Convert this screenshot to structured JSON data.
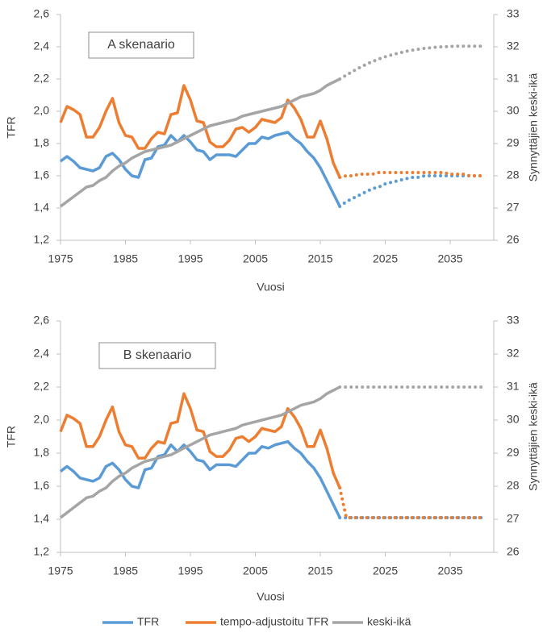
{
  "chart_data": [
    {
      "type": "line",
      "annotation": "A skenaario",
      "xlabel": "Vuosi",
      "ylabel": "TFR",
      "y2label": "Synnyttäjien keski-ikä",
      "x": [
        1975,
        1976,
        1977,
        1978,
        1979,
        1980,
        1981,
        1982,
        1983,
        1984,
        1985,
        1986,
        1987,
        1988,
        1989,
        1990,
        1991,
        1992,
        1993,
        1994,
        1995,
        1996,
        1997,
        1998,
        1999,
        2000,
        2001,
        2002,
        2003,
        2004,
        2005,
        2006,
        2007,
        2008,
        2009,
        2010,
        2011,
        2012,
        2013,
        2014,
        2015,
        2016,
        2017,
        2018,
        2019,
        2020,
        2021,
        2022,
        2023,
        2024,
        2025,
        2026,
        2027,
        2028,
        2029,
        2030,
        2031,
        2032,
        2033,
        2034,
        2035,
        2036,
        2037,
        2038,
        2039,
        2040
      ],
      "xlim": [
        1975,
        2041.7
      ],
      "xticks": [
        1975,
        1985,
        1995,
        2005,
        2015,
        2025,
        2035
      ],
      "ylim": [
        1.2,
        2.6
      ],
      "yticks": [
        {
          "value": 1.2,
          "label": "1,2"
        },
        {
          "value": 1.4,
          "label": "1,4"
        },
        {
          "value": 1.6,
          "label": "1,6"
        },
        {
          "value": 1.8,
          "label": "1,8"
        },
        {
          "value": 2.0,
          "label": "2,0"
        },
        {
          "value": 2.2,
          "label": "2,2"
        },
        {
          "value": 2.4,
          "label": "2,4"
        },
        {
          "value": 2.6,
          "label": "2,6"
        }
      ],
      "y2lim": [
        26,
        33
      ],
      "y2ticks": [
        26,
        27,
        28,
        29,
        30,
        31,
        32,
        33
      ],
      "series": [
        {
          "color": "#5b9bd5",
          "values": [
            1.69,
            1.72,
            1.69,
            1.65,
            1.64,
            1.63,
            1.65,
            1.72,
            1.74,
            1.7,
            1.64,
            1.6,
            1.59,
            1.7,
            1.71,
            1.78,
            1.79,
            1.85,
            1.81,
            1.85,
            1.81,
            1.76,
            1.75,
            1.7,
            1.73,
            1.73,
            1.73,
            1.72,
            1.76,
            1.8,
            1.8,
            1.84,
            1.83,
            1.85,
            1.86,
            1.87,
            1.83,
            1.8,
            1.75,
            1.71,
            1.65,
            1.57,
            1.49,
            1.41,
            null,
            null,
            null,
            null,
            null,
            null,
            null,
            null,
            null,
            null,
            null,
            null,
            null,
            null,
            null,
            null,
            null,
            null,
            null,
            null,
            null,
            null
          ],
          "projection": [
            null,
            null,
            null,
            null,
            null,
            null,
            null,
            null,
            null,
            null,
            null,
            null,
            null,
            null,
            null,
            null,
            null,
            null,
            null,
            null,
            null,
            null,
            null,
            null,
            null,
            null,
            null,
            null,
            null,
            null,
            null,
            null,
            null,
            null,
            null,
            null,
            null,
            null,
            null,
            null,
            null,
            null,
            null,
            1.41,
            1.44,
            1.46,
            1.48,
            1.5,
            1.52,
            1.53,
            1.55,
            1.56,
            1.57,
            1.58,
            1.59,
            1.59,
            1.6,
            1.6,
            1.6,
            1.6,
            1.6,
            1.6,
            1.6,
            1.6,
            1.6,
            1.6
          ]
        },
        {
          "color": "#ed7d31",
          "values": [
            1.93,
            2.03,
            2.01,
            1.98,
            1.84,
            1.84,
            1.9,
            2.0,
            2.08,
            1.93,
            1.85,
            1.84,
            1.77,
            1.77,
            1.83,
            1.87,
            1.86,
            1.98,
            1.99,
            2.16,
            2.07,
            1.94,
            1.93,
            1.81,
            1.78,
            1.78,
            1.82,
            1.89,
            1.9,
            1.87,
            1.9,
            1.95,
            1.94,
            1.93,
            1.96,
            2.07,
            2.02,
            1.95,
            1.84,
            1.84,
            1.94,
            1.83,
            1.68,
            1.59,
            null,
            null,
            null,
            null,
            null,
            null,
            null,
            null,
            null,
            null,
            null,
            null,
            null,
            null,
            null,
            null,
            null,
            null,
            null,
            null,
            null,
            null
          ],
          "projection": [
            null,
            null,
            null,
            null,
            null,
            null,
            null,
            null,
            null,
            null,
            null,
            null,
            null,
            null,
            null,
            null,
            null,
            null,
            null,
            null,
            null,
            null,
            null,
            null,
            null,
            null,
            null,
            null,
            null,
            null,
            null,
            null,
            null,
            null,
            null,
            null,
            null,
            null,
            null,
            null,
            null,
            null,
            null,
            1.59,
            1.6,
            1.6,
            1.61,
            1.61,
            1.61,
            1.62,
            1.62,
            1.62,
            1.62,
            1.62,
            1.62,
            1.62,
            1.62,
            1.62,
            1.62,
            1.62,
            1.61,
            1.61,
            1.61,
            1.6,
            1.6,
            1.6
          ]
        },
        {
          "color": "#a5a5a5",
          "axis": "y2",
          "values": [
            27.05,
            27.2,
            27.35,
            27.5,
            27.65,
            27.7,
            27.85,
            27.95,
            28.15,
            28.3,
            28.4,
            28.55,
            28.65,
            28.75,
            28.8,
            28.85,
            28.9,
            28.95,
            29.05,
            29.15,
            29.25,
            29.35,
            29.45,
            29.55,
            29.6,
            29.65,
            29.7,
            29.75,
            29.85,
            29.9,
            29.95,
            30.0,
            30.05,
            30.1,
            30.15,
            30.25,
            30.35,
            30.45,
            30.5,
            30.55,
            30.65,
            30.8,
            30.9,
            31.0,
            null,
            null,
            null,
            null,
            null,
            null,
            null,
            null,
            null,
            null,
            null,
            null,
            null,
            null,
            null,
            null,
            null,
            null,
            null,
            null,
            null,
            null
          ],
          "projection": [
            null,
            null,
            null,
            null,
            null,
            null,
            null,
            null,
            null,
            null,
            null,
            null,
            null,
            null,
            null,
            null,
            null,
            null,
            null,
            null,
            null,
            null,
            null,
            null,
            null,
            null,
            null,
            null,
            null,
            null,
            null,
            null,
            null,
            null,
            null,
            null,
            null,
            null,
            null,
            null,
            null,
            null,
            null,
            31.0,
            31.12,
            31.24,
            31.35,
            31.45,
            31.54,
            31.62,
            31.69,
            31.75,
            31.8,
            31.85,
            31.89,
            31.92,
            31.95,
            31.97,
            31.99,
            32.0,
            32.01,
            32.02,
            32.02,
            32.02,
            32.02,
            32.02
          ]
        }
      ]
    },
    {
      "type": "line",
      "annotation": "B skenaario",
      "xlabel": "Vuosi",
      "ylabel": "TFR",
      "y2label": "Synnyttäjien keski-ikä",
      "x": [
        1975,
        1976,
        1977,
        1978,
        1979,
        1980,
        1981,
        1982,
        1983,
        1984,
        1985,
        1986,
        1987,
        1988,
        1989,
        1990,
        1991,
        1992,
        1993,
        1994,
        1995,
        1996,
        1997,
        1998,
        1999,
        2000,
        2001,
        2002,
        2003,
        2004,
        2005,
        2006,
        2007,
        2008,
        2009,
        2010,
        2011,
        2012,
        2013,
        2014,
        2015,
        2016,
        2017,
        2018,
        2019,
        2020,
        2021,
        2022,
        2023,
        2024,
        2025,
        2026,
        2027,
        2028,
        2029,
        2030,
        2031,
        2032,
        2033,
        2034,
        2035,
        2036,
        2037,
        2038,
        2039,
        2040
      ],
      "xlim": [
        1975,
        2041.7
      ],
      "xticks": [
        1975,
        1985,
        1995,
        2005,
        2015,
        2025,
        2035
      ],
      "ylim": [
        1.2,
        2.6
      ],
      "yticks": [
        {
          "value": 1.2,
          "label": "1,2"
        },
        {
          "value": 1.4,
          "label": "1,4"
        },
        {
          "value": 1.6,
          "label": "1,6"
        },
        {
          "value": 1.8,
          "label": "1,8"
        },
        {
          "value": 2.0,
          "label": "2,0"
        },
        {
          "value": 2.2,
          "label": "2,2"
        },
        {
          "value": 2.4,
          "label": "2,4"
        },
        {
          "value": 2.6,
          "label": "2,6"
        }
      ],
      "y2lim": [
        26,
        33
      ],
      "y2ticks": [
        26,
        27,
        28,
        29,
        30,
        31,
        32,
        33
      ],
      "series": [
        {
          "name": "TFR",
          "color": "#5b9bd5",
          "values": [
            1.69,
            1.72,
            1.69,
            1.65,
            1.64,
            1.63,
            1.65,
            1.72,
            1.74,
            1.7,
            1.64,
            1.6,
            1.59,
            1.7,
            1.71,
            1.78,
            1.79,
            1.85,
            1.81,
            1.85,
            1.81,
            1.76,
            1.75,
            1.7,
            1.73,
            1.73,
            1.73,
            1.72,
            1.76,
            1.8,
            1.8,
            1.84,
            1.83,
            1.85,
            1.86,
            1.87,
            1.83,
            1.8,
            1.75,
            1.71,
            1.65,
            1.57,
            1.49,
            1.41,
            null,
            null,
            null,
            null,
            null,
            null,
            null,
            null,
            null,
            null,
            null,
            null,
            null,
            null,
            null,
            null,
            null,
            null,
            null,
            null,
            null,
            null
          ],
          "projection": [
            null,
            null,
            null,
            null,
            null,
            null,
            null,
            null,
            null,
            null,
            null,
            null,
            null,
            null,
            null,
            null,
            null,
            null,
            null,
            null,
            null,
            null,
            null,
            null,
            null,
            null,
            null,
            null,
            null,
            null,
            null,
            null,
            null,
            null,
            null,
            null,
            null,
            null,
            null,
            null,
            null,
            null,
            null,
            1.41,
            1.41,
            1.41,
            1.41,
            1.41,
            1.41,
            1.41,
            1.41,
            1.41,
            1.41,
            1.41,
            1.41,
            1.41,
            1.41,
            1.41,
            1.41,
            1.41,
            1.41,
            1.41,
            1.41,
            1.41,
            1.41,
            1.41
          ]
        },
        {
          "name": "tempo-adjustoitu TFR",
          "color": "#ed7d31",
          "values": [
            1.93,
            2.03,
            2.01,
            1.98,
            1.84,
            1.84,
            1.9,
            2.0,
            2.08,
            1.93,
            1.85,
            1.84,
            1.77,
            1.77,
            1.83,
            1.87,
            1.86,
            1.98,
            1.99,
            2.16,
            2.07,
            1.94,
            1.93,
            1.81,
            1.78,
            1.78,
            1.82,
            1.89,
            1.9,
            1.87,
            1.9,
            1.95,
            1.94,
            1.93,
            1.96,
            2.07,
            2.02,
            1.95,
            1.84,
            1.84,
            1.94,
            1.83,
            1.68,
            1.59,
            null,
            null,
            null,
            null,
            null,
            null,
            null,
            null,
            null,
            null,
            null,
            null,
            null,
            null,
            null,
            null,
            null,
            null,
            null,
            null,
            null,
            null
          ],
          "projection": [
            null,
            null,
            null,
            null,
            null,
            null,
            null,
            null,
            null,
            null,
            null,
            null,
            null,
            null,
            null,
            null,
            null,
            null,
            null,
            null,
            null,
            null,
            null,
            null,
            null,
            null,
            null,
            null,
            null,
            null,
            null,
            null,
            null,
            null,
            null,
            null,
            null,
            null,
            null,
            null,
            null,
            null,
            null,
            1.59,
            1.41,
            1.41,
            1.41,
            1.41,
            1.41,
            1.41,
            1.41,
            1.41,
            1.41,
            1.41,
            1.41,
            1.41,
            1.41,
            1.41,
            1.41,
            1.41,
            1.41,
            1.41,
            1.41,
            1.41,
            1.41,
            1.41
          ]
        },
        {
          "name": "keski-ikä",
          "color": "#a5a5a5",
          "axis": "y2",
          "values": [
            27.05,
            27.2,
            27.35,
            27.5,
            27.65,
            27.7,
            27.85,
            27.95,
            28.15,
            28.3,
            28.4,
            28.55,
            28.65,
            28.75,
            28.8,
            28.85,
            28.9,
            28.95,
            29.05,
            29.15,
            29.25,
            29.35,
            29.45,
            29.55,
            29.6,
            29.65,
            29.7,
            29.75,
            29.85,
            29.9,
            29.95,
            30.0,
            30.05,
            30.1,
            30.15,
            30.25,
            30.35,
            30.45,
            30.5,
            30.55,
            30.65,
            30.8,
            30.9,
            31.0,
            null,
            null,
            null,
            null,
            null,
            null,
            null,
            null,
            null,
            null,
            null,
            null,
            null,
            null,
            null,
            null,
            null,
            null,
            null,
            null,
            null,
            null
          ],
          "projection": [
            null,
            null,
            null,
            null,
            null,
            null,
            null,
            null,
            null,
            null,
            null,
            null,
            null,
            null,
            null,
            null,
            null,
            null,
            null,
            null,
            null,
            null,
            null,
            null,
            null,
            null,
            null,
            null,
            null,
            null,
            null,
            null,
            null,
            null,
            null,
            null,
            null,
            null,
            null,
            null,
            null,
            null,
            null,
            31.0,
            31.0,
            31.0,
            31.0,
            31.0,
            31.0,
            31.0,
            31.0,
            31.0,
            31.0,
            31.0,
            31.0,
            31.0,
            31.0,
            31.0,
            31.0,
            31.0,
            31.0,
            31.0,
            31.0,
            31.0,
            31.0,
            31.0
          ]
        }
      ]
    }
  ]
}
